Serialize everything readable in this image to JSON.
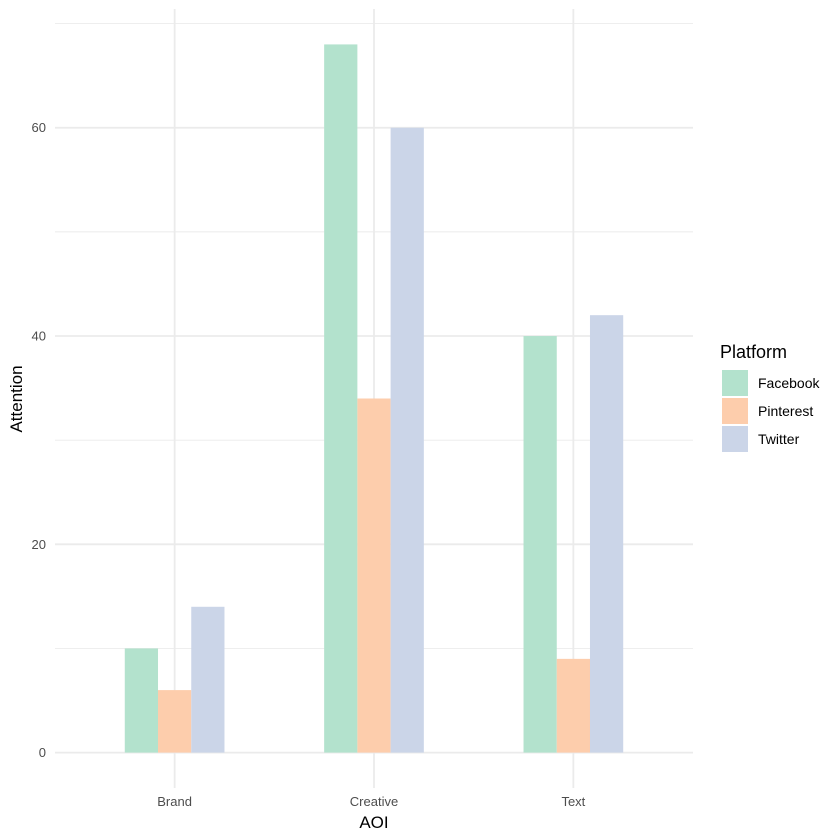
{
  "chart_data": {
    "type": "bar",
    "title": "",
    "xlabel": "AOI",
    "ylabel": "Attention",
    "categories": [
      "Brand",
      "Creative",
      "Text"
    ],
    "series": [
      {
        "name": "Facebook",
        "color": "#B3E2CD",
        "values": [
          10,
          68,
          40
        ]
      },
      {
        "name": "Pinterest",
        "color": "#FDCDAC",
        "values": [
          6,
          34,
          9
        ]
      },
      {
        "name": "Twitter",
        "color": "#CBD5E8",
        "values": [
          14,
          60,
          42
        ]
      }
    ],
    "ylim": [
      -3.4,
      71.4
    ],
    "yticks": [
      0,
      20,
      40,
      60
    ],
    "ytick_labels": [
      "0",
      "20",
      "40",
      "60"
    ],
    "grid": true,
    "legend": {
      "title": "Platform",
      "placement": "right"
    }
  }
}
